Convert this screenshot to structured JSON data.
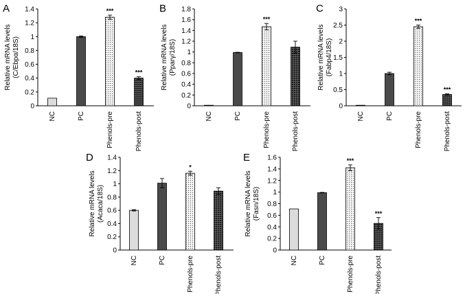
{
  "chart_data": [
    {
      "type": "bar",
      "panel": "A",
      "ylabel_lines": [
        "Relative mRNA levels",
        "(C/Ebpα/18S)"
      ],
      "categories": [
        "NC",
        "PC",
        "Phenols-pre",
        "Phenols-post"
      ],
      "values": [
        0.11,
        1.0,
        1.28,
        0.4
      ],
      "errors": [
        0,
        0.01,
        0.03,
        0.02
      ],
      "significance": [
        "",
        "",
        "***",
        "***"
      ],
      "ylim": [
        0,
        1.4
      ],
      "yticks": [
        0,
        0.2,
        0.4,
        0.6,
        0.8,
        1,
        1.2,
        1.4
      ]
    },
    {
      "type": "bar",
      "panel": "B",
      "ylabel_lines": [
        "Relative mRNA levels",
        "(Pparγ/18S)"
      ],
      "categories": [
        "NC",
        "PC",
        "Phenols-pre",
        "Phenols-post"
      ],
      "values": [
        0.01,
        0.99,
        1.47,
        1.09
      ],
      "errors": [
        0,
        0.005,
        0.06,
        0.11
      ],
      "significance": [
        "",
        "",
        "***",
        ""
      ],
      "ylim": [
        0,
        1.8
      ],
      "yticks": [
        0,
        0.2,
        0.4,
        0.6,
        0.8,
        1,
        1.2,
        1.4,
        1.6,
        1.8
      ]
    },
    {
      "type": "bar",
      "panel": "C",
      "ylabel_lines": [
        "Relative mRNA levels",
        "(Fabp4/18S)"
      ],
      "categories": [
        "NC",
        "PC",
        "Phenols-pre",
        "Phenols-post"
      ],
      "values": [
        0.0,
        1.0,
        2.45,
        0.35
      ],
      "errors": [
        0,
        0.04,
        0.05,
        0.02
      ],
      "significance": [
        "",
        "",
        "***",
        "***"
      ],
      "ylim": [
        0,
        3
      ],
      "yticks": [
        0,
        0.5,
        1,
        1.5,
        2,
        2.5,
        3
      ]
    },
    {
      "type": "bar",
      "panel": "D",
      "ylabel_lines": [
        "Relative mRNA levels",
        "(Acaca/18S)"
      ],
      "categories": [
        "NC",
        "PC",
        "Phenols-pre",
        "Phenols-post"
      ],
      "values": [
        0.6,
        1.01,
        1.16,
        0.89
      ],
      "errors": [
        0.01,
        0.07,
        0.03,
        0.05
      ],
      "significance": [
        "",
        "",
        "*",
        ""
      ],
      "ylim": [
        0,
        1.4
      ],
      "yticks": [
        0,
        0.2,
        0.4,
        0.6,
        0.8,
        1,
        1.2,
        1.4
      ]
    },
    {
      "type": "bar",
      "panel": "E",
      "ylabel_lines": [
        "Relative mRNA levels",
        "(Fasn/18S)"
      ],
      "categories": [
        "NC",
        "PC",
        "Phenols-pre",
        "Phenols-post"
      ],
      "values": [
        0.71,
        0.99,
        1.42,
        0.46
      ],
      "errors": [
        0,
        0.005,
        0.05,
        0.1
      ],
      "significance": [
        "",
        "",
        "***",
        "***"
      ],
      "ylim": [
        0,
        1.6
      ],
      "yticks": [
        0,
        0.2,
        0.4,
        0.6,
        0.8,
        1,
        1.2,
        1.4,
        1.6
      ]
    }
  ],
  "colors": {
    "NC": "#dcdcdc",
    "PC": "#4a4a4a",
    "Phenols-pre": "#f2f2f2",
    "Phenols-post": "#2a2a2a"
  }
}
